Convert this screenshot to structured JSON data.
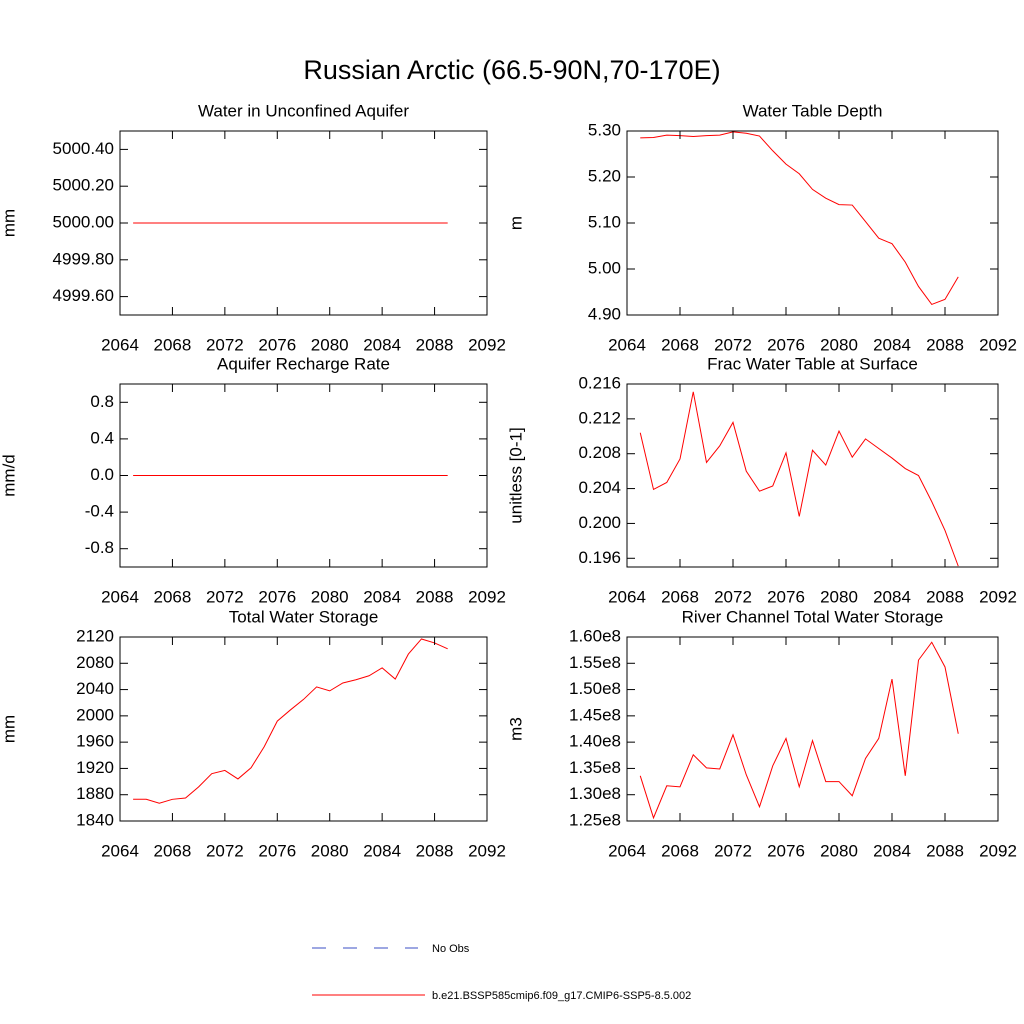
{
  "title": "Russian Arctic (66.5-90N,70-170E)",
  "legend": [
    {
      "name": "No Obs",
      "color": "#3b4fc4",
      "dash": true
    },
    {
      "name": "b.e21.BSSP585cmip6.f09_g17.CMIP6-SSP5-8.5.002",
      "color": "#ff0000",
      "dash": false
    }
  ],
  "chart_data": [
    {
      "type": "line",
      "title": "Water in Unconfined Aquifer",
      "ylabel": "mm",
      "x": [
        2065,
        2066,
        2067,
        2068,
        2069,
        2070,
        2071,
        2072,
        2073,
        2074,
        2075,
        2076,
        2077,
        2078,
        2079,
        2080,
        2081,
        2082,
        2083,
        2084,
        2085,
        2086,
        2087,
        2088,
        2089
      ],
      "series": [
        {
          "name": "b.e21.BSSP585cmip6.f09_g17.CMIP6-SSP5-8.5.002",
          "color": "#ff0000",
          "values": [
            5000,
            5000,
            5000,
            5000,
            5000,
            5000,
            5000,
            5000,
            5000,
            5000,
            5000,
            5000,
            5000,
            5000,
            5000,
            5000,
            5000,
            5000,
            5000,
            5000,
            5000,
            5000,
            5000,
            5000,
            5000
          ]
        }
      ],
      "xlim": [
        2064,
        2092
      ],
      "xticks": [
        2064,
        2068,
        2072,
        2076,
        2080,
        2084,
        2088,
        2092
      ],
      "ylim": [
        4999.5,
        5000.5
      ],
      "yticks": [
        {
          "value": 4999.6,
          "label": "4999.60"
        },
        {
          "value": 4999.8,
          "label": "4999.80"
        },
        {
          "value": 5000,
          "label": "5000.00"
        },
        {
          "value": 5000.2,
          "label": "5000.20"
        },
        {
          "value": 5000.4,
          "label": "5000.40"
        }
      ]
    },
    {
      "type": "line",
      "title": "Water Table Depth",
      "ylabel": "m",
      "x": [
        2065,
        2066,
        2067,
        2068,
        2069,
        2070,
        2071,
        2072,
        2073,
        2074,
        2075,
        2076,
        2077,
        2078,
        2079,
        2080,
        2081,
        2082,
        2083,
        2084,
        2085,
        2086,
        2087,
        2088,
        2089
      ],
      "series": [
        {
          "name": "b.e21.BSSP585cmip6.f09_g17.CMIP6-SSP5-8.5.002",
          "color": "#ff0000",
          "values": [
            5.285,
            5.286,
            5.291,
            5.29,
            5.288,
            5.29,
            5.291,
            5.298,
            5.295,
            5.289,
            5.257,
            5.228,
            5.207,
            5.173,
            5.154,
            5.14,
            5.139,
            5.103,
            5.067,
            5.055,
            5.015,
            4.962,
            4.923,
            4.934,
            4.983
          ]
        }
      ],
      "xlim": [
        2064,
        2092
      ],
      "xticks": [
        2064,
        2068,
        2072,
        2076,
        2080,
        2084,
        2088,
        2092
      ],
      "ylim": [
        4.9,
        5.3
      ],
      "yticks": [
        {
          "value": 4.9,
          "label": "4.90"
        },
        {
          "value": 5,
          "label": "5.00"
        },
        {
          "value": 5.1,
          "label": "5.10"
        },
        {
          "value": 5.2,
          "label": "5.20"
        },
        {
          "value": 5.3,
          "label": "5.30"
        }
      ]
    },
    {
      "type": "line",
      "title": "Aquifer Recharge Rate",
      "ylabel": "mm/d",
      "x": [
        2065,
        2066,
        2067,
        2068,
        2069,
        2070,
        2071,
        2072,
        2073,
        2074,
        2075,
        2076,
        2077,
        2078,
        2079,
        2080,
        2081,
        2082,
        2083,
        2084,
        2085,
        2086,
        2087,
        2088,
        2089
      ],
      "series": [
        {
          "name": "b.e21.BSSP585cmip6.f09_g17.CMIP6-SSP5-8.5.002",
          "color": "#ff0000",
          "values": [
            0,
            0,
            0,
            0,
            0,
            0,
            0,
            0,
            0,
            0,
            0,
            0,
            0,
            0,
            0,
            0,
            0,
            0,
            0,
            0,
            0,
            0,
            0,
            0,
            0
          ]
        }
      ],
      "xlim": [
        2064,
        2092
      ],
      "xticks": [
        2064,
        2068,
        2072,
        2076,
        2080,
        2084,
        2088,
        2092
      ],
      "ylim": [
        -1,
        1
      ],
      "yticks": [
        -0.8,
        -0.4,
        {
          "value": 0,
          "label": "0.0"
        },
        0.4,
        0.8
      ]
    },
    {
      "type": "line",
      "title": "Frac Water Table at Surface",
      "ylabel": "unitless [0-1]",
      "x": [
        2065,
        2066,
        2067,
        2068,
        2069,
        2070,
        2071,
        2072,
        2073,
        2074,
        2075,
        2076,
        2077,
        2078,
        2079,
        2080,
        2081,
        2082,
        2083,
        2084,
        2085,
        2086,
        2087,
        2088,
        2089
      ],
      "series": [
        {
          "name": "b.e21.BSSP585cmip6.f09_g17.CMIP6-SSP5-8.5.002",
          "color": "#ff0000",
          "values": [
            0.2104,
            0.2039,
            0.2047,
            0.2074,
            0.2151,
            0.207,
            0.2089,
            0.2116,
            0.206,
            0.2037,
            0.2043,
            0.2081,
            0.2008,
            0.2084,
            0.2067,
            0.2106,
            0.2076,
            0.2097,
            0.2086,
            0.2075,
            0.2063,
            0.2055,
            0.2025,
            0.1992,
            0.1951
          ]
        }
      ],
      "xlim": [
        2064,
        2092
      ],
      "xticks": [
        2064,
        2068,
        2072,
        2076,
        2080,
        2084,
        2088,
        2092
      ],
      "ylim": [
        0.195,
        0.216
      ],
      "yticks": [
        0.196,
        {
          "value": 0.2,
          "label": "0.200"
        },
        0.204,
        0.208,
        0.212,
        0.216
      ]
    },
    {
      "type": "line",
      "title": "Total Water Storage",
      "ylabel": "mm",
      "x": [
        2065,
        2066,
        2067,
        2068,
        2069,
        2070,
        2071,
        2072,
        2073,
        2074,
        2075,
        2076,
        2077,
        2078,
        2079,
        2080,
        2081,
        2082,
        2083,
        2084,
        2085,
        2086,
        2087,
        2088,
        2089
      ],
      "series": [
        {
          "name": "b.e21.BSSP585cmip6.f09_g17.CMIP6-SSP5-8.5.002",
          "color": "#ff0000",
          "values": [
            1873,
            1873,
            1867,
            1873,
            1875,
            1892,
            1912,
            1917,
            1904,
            1921,
            1953,
            1992,
            2009,
            2025,
            2044,
            2038,
            2050,
            2055,
            2061,
            2073,
            2056,
            2094,
            2117,
            2111,
            2102
          ]
        }
      ],
      "xlim": [
        2064,
        2092
      ],
      "xticks": [
        2064,
        2068,
        2072,
        2076,
        2080,
        2084,
        2088,
        2092
      ],
      "ylim": [
        1840,
        2120
      ],
      "yticks": [
        1840,
        1880,
        1920,
        1960,
        2000,
        2040,
        2080,
        2120
      ]
    },
    {
      "type": "line",
      "title": "River Channel Total Water Storage",
      "ylabel": "m3",
      "x": [
        2065,
        2066,
        2067,
        2068,
        2069,
        2070,
        2071,
        2072,
        2073,
        2074,
        2075,
        2076,
        2077,
        2078,
        2079,
        2080,
        2081,
        2082,
        2083,
        2084,
        2085,
        2086,
        2087,
        2088,
        2089
      ],
      "series": [
        {
          "name": "b.e21.BSSP585cmip6.f09_g17.CMIP6-SSP5-8.5.002",
          "color": "#ff0000",
          "values": [
            133600000,
            125600000,
            131700000,
            131500000,
            137600000,
            135100000,
            134900000,
            141400000,
            133800000,
            127700000,
            135500000,
            140700000,
            131500000,
            140300000,
            132500000,
            132500000,
            129800000,
            136900000,
            140700000,
            152000000,
            133600000,
            155600000,
            159000000,
            154300000,
            141600000
          ]
        }
      ],
      "xlim": [
        2064,
        2092
      ],
      "xticks": [
        2064,
        2068,
        2072,
        2076,
        2080,
        2084,
        2088,
        2092
      ],
      "ylim": [
        125000000,
        160000000
      ],
      "yticks": [
        {
          "value": 125000000,
          "label": "1.25e8"
        },
        {
          "value": 130000000,
          "label": "1.30e8"
        },
        {
          "value": 135000000,
          "label": "1.35e8"
        },
        {
          "value": 140000000,
          "label": "1.40e8"
        },
        {
          "value": 145000000,
          "label": "1.45e8"
        },
        {
          "value": 150000000,
          "label": "1.50e8"
        },
        {
          "value": 155000000,
          "label": "1.55e8"
        },
        {
          "value": 160000000,
          "label": "1.60e8"
        }
      ]
    }
  ]
}
